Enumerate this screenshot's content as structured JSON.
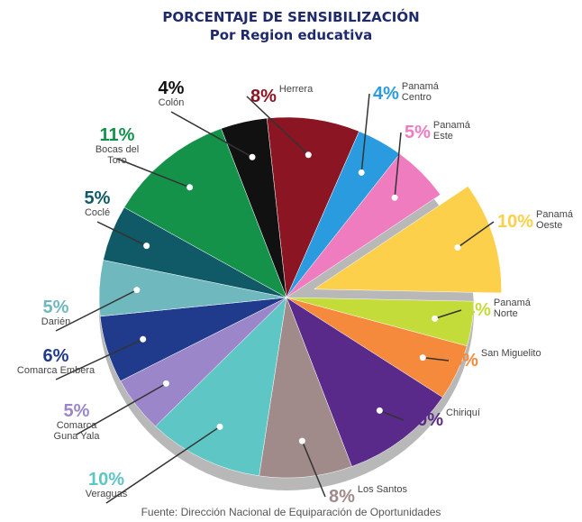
{
  "chart_data": {
    "type": "pie",
    "title": "PORCENTAJE DE SENSIBILIZACIÓN",
    "subtitle": "Por Region educativa",
    "categories": [
      "Herrera",
      "Panamá Centro",
      "Panamá Este",
      "Panamá Oeste",
      "Panamá Norte",
      "San Miguelito",
      "Chiriquí",
      "Los Santos",
      "Veraguas",
      "Comarca Guna Yala",
      "Comarca Embera",
      "Darién",
      "Coclé",
      "Bocas del Toro",
      "Colón"
    ],
    "values": [
      8,
      4,
      5,
      10,
      4,
      5,
      10,
      8,
      10,
      5,
      6,
      5,
      5,
      11,
      4
    ],
    "value_labels": [
      "8%",
      "4%",
      "5%",
      "10%",
      "4%",
      "5%",
      "10%",
      "8%",
      "10%",
      "5%",
      "6%",
      "5%",
      "5%",
      "11%",
      "4%"
    ],
    "colors": [
      "#8b1522",
      "#2b9be0",
      "#f07cc0",
      "#fcd04a",
      "#c4dc3a",
      "#f58a3c",
      "#5a2a8a",
      "#a08a8a",
      "#5ec6c4",
      "#9a86c8",
      "#203a8c",
      "#6fb8be",
      "#0f5a66",
      "#14924a",
      "#111111"
    ],
    "exploded": [
      3
    ],
    "annotations": [
      "Fuente: Dirección Nacional de Equiparación de Oportunidades"
    ]
  }
}
